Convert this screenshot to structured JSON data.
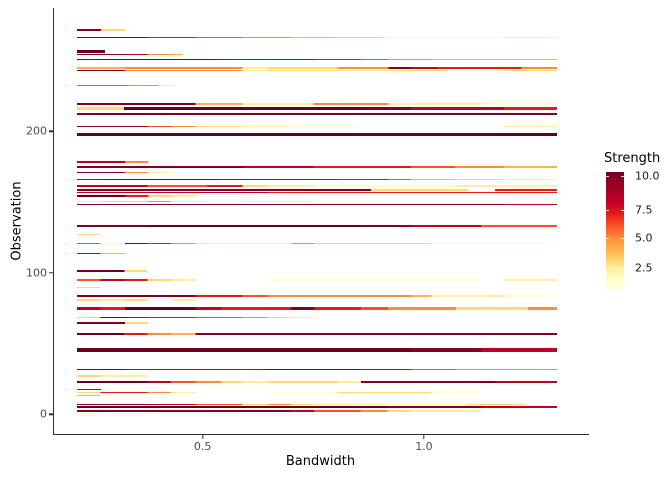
{
  "chart_data": {
    "type": "heatmap",
    "subtype": "horizontal-colored-line-segments",
    "title": "",
    "xlabel": "Bandwidth",
    "ylabel": "Observation",
    "xlim": [
      0.164,
      1.373
    ],
    "ylim": [
      -13.9,
      287.1
    ],
    "grid": false,
    "x_ticks": [
      {
        "v": 0.5,
        "label": "0.5"
      },
      {
        "v": 1.0,
        "label": "1.0"
      }
    ],
    "y_ticks": [
      {
        "v": 0,
        "label": "0"
      },
      {
        "v": 100,
        "label": "100"
      },
      {
        "v": 200,
        "label": "200"
      }
    ],
    "legend": {
      "title": "Strength",
      "position": "right",
      "ticks": [
        {
          "value": 10.0,
          "label": "10.0",
          "pos_pct": 3.4
        },
        {
          "value": 7.5,
          "label": "7.5",
          "pos_pct": 31.8
        },
        {
          "value": 5.0,
          "label": "5.0",
          "pos_pct": 55.9
        },
        {
          "value": 2.5,
          "label": "2.5",
          "pos_pct": 81.5
        }
      ],
      "gradient_stops": [
        [
          0,
          "#73001f"
        ],
        [
          3.4,
          "#800026"
        ],
        [
          14,
          "#a30026"
        ],
        [
          24.5,
          "#bd0026"
        ],
        [
          35,
          "#e31a1c"
        ],
        [
          45,
          "#fc4e2a"
        ],
        [
          55.9,
          "#fd8d3c"
        ],
        [
          66,
          "#feb24c"
        ],
        [
          76,
          "#fed976"
        ],
        [
          81.5,
          "#ffeda0"
        ],
        [
          92,
          "#ffffcc"
        ],
        [
          100,
          "#fffdeb"
        ]
      ]
    },
    "row_start": 0.216,
    "rows": [
      {
        "obs": 271.6,
        "seg": [
          [
            0.27,
            "#800026"
          ],
          [
            0.325,
            "#fed976"
          ]
        ]
      },
      {
        "obs": 266.4,
        "seg": [
          [
            0.375,
            "#800026"
          ],
          [
            0.486,
            "#e31a1c"
          ],
          [
            0.59,
            "#fc4e2a"
          ],
          [
            0.7,
            "#fd8d3c"
          ],
          [
            0.8,
            "#feb24c"
          ],
          [
            0.91,
            "#fed976"
          ],
          [
            1.18,
            "#ffffcc"
          ],
          [
            1.3,
            "#ffeda0"
          ]
        ]
      },
      {
        "obs": 256.5,
        "h": 2.5,
        "seg": [
          [
            0.28,
            "#67001f"
          ]
        ]
      },
      {
        "obs": 254.1,
        "seg": [
          [
            0.325,
            "#800026"
          ],
          [
            0.376,
            "#bd0026"
          ],
          [
            0.43,
            "#fd8d3c"
          ],
          [
            0.456,
            "#feb24c"
          ]
        ]
      },
      {
        "obs": 250.6,
        "seg": [
          [
            0.54,
            "#800026"
          ],
          [
            0.752,
            "#bd0026"
          ],
          [
            0.857,
            "#e31a1c"
          ],
          [
            0.918,
            "#fc4e2a"
          ],
          [
            1.017,
            "#fd8d3c"
          ],
          [
            1.3,
            "#feb24c"
          ]
        ]
      },
      {
        "obs": 244.7,
        "seg": [
          [
            0.324,
            "#feb24c"
          ],
          [
            0.59,
            "#fd8d3c"
          ],
          [
            0.646,
            "#ffeda0"
          ],
          [
            0.805,
            "#fed976"
          ],
          [
            0.92,
            "#fd8d3c"
          ],
          [
            0.97,
            "#800026"
          ],
          [
            1.03,
            "#bd0026"
          ],
          [
            1.22,
            "#e31a1c"
          ],
          [
            1.3,
            "#fd8d3c"
          ]
        ]
      },
      {
        "obs": 243.0,
        "seg": [
          [
            0.324,
            "#800026"
          ],
          [
            0.59,
            "#fd8d3c"
          ],
          [
            0.646,
            "#ffeda0"
          ],
          [
            0.805,
            "#fed976"
          ],
          [
            0.92,
            "#ffeda0"
          ],
          [
            1.05,
            "#fed976"
          ],
          [
            1.18,
            "#ffffcc"
          ],
          [
            1.3,
            "#fed976"
          ]
        ]
      },
      {
        "obs": 232.2,
        "seg": [
          [
            0.33,
            "#fc4e2a"
          ],
          [
            0.4,
            "#fd8d3c"
          ],
          [
            0.435,
            "#ffeda0"
          ]
        ]
      },
      {
        "obs": 219.3,
        "seg": [
          [
            0.484,
            "#800026"
          ],
          [
            0.59,
            "#feb24c"
          ],
          [
            0.75,
            "#ffeda0"
          ],
          [
            0.92,
            "#fd8d3c"
          ],
          [
            1.13,
            "#ffeda0"
          ],
          [
            1.3,
            "#ffffcc"
          ]
        ]
      },
      {
        "obs": 216.0,
        "h": 3,
        "seg": [
          [
            0.322,
            "#fed976"
          ],
          [
            0.857,
            "#67001f"
          ],
          [
            0.97,
            "#800026"
          ],
          [
            1.18,
            "#bd0026"
          ],
          [
            1.3,
            "#e31a1c"
          ]
        ]
      },
      {
        "obs": 212.2,
        "seg": [
          [
            1.3,
            "#800026"
          ]
        ]
      },
      {
        "obs": 203.2,
        "seg": [
          [
            0.375,
            "#800026"
          ],
          [
            0.43,
            "#fc4e2a"
          ],
          [
            0.484,
            "#fd8d3c"
          ],
          [
            0.59,
            "#fed976"
          ],
          [
            0.7,
            "#ffeda0"
          ],
          [
            0.857,
            "#ffffcc"
          ],
          [
            1.18,
            "none"
          ],
          [
            1.3,
            "#ffeda0"
          ]
        ]
      },
      {
        "obs": 197.6,
        "h": 3,
        "seg": [
          [
            1.3,
            "#67001f"
          ]
        ]
      },
      {
        "obs": 178.3,
        "seg": [
          [
            0.324,
            "#bd0026"
          ],
          [
            0.376,
            "#fd8d3c"
          ]
        ]
      },
      {
        "obs": 174.6,
        "seg": [
          [
            0.59,
            "#800026"
          ],
          [
            0.75,
            "#bd0026"
          ],
          [
            0.97,
            "#e31a1c"
          ],
          [
            1.07,
            "#fc4e2a"
          ],
          [
            1.18,
            "#fd8d3c"
          ],
          [
            1.3,
            "#feb24c"
          ]
        ]
      },
      {
        "obs": 170.8,
        "seg": [
          [
            0.324,
            "#800026"
          ],
          [
            0.376,
            "#fd8d3c"
          ],
          [
            0.428,
            "#ffeda0"
          ]
        ]
      },
      {
        "obs": 165.8,
        "seg": [
          [
            0.27,
            "#bd0026"
          ],
          [
            0.54,
            "#800026"
          ],
          [
            0.805,
            "#bd0026"
          ],
          [
            0.92,
            "#e31a1c"
          ],
          [
            0.97,
            "#fc4e2a"
          ],
          [
            1.07,
            "#feb24c"
          ],
          [
            1.18,
            "#fed976"
          ],
          [
            1.3,
            "#ffeda0"
          ]
        ]
      },
      {
        "obs": 161.4,
        "h": 2.5,
        "seg": [
          [
            0.375,
            "#bd0026"
          ],
          [
            0.51,
            "#fc4e2a"
          ],
          [
            0.59,
            "#e31a1c"
          ],
          [
            0.646,
            "#fed976"
          ],
          [
            0.752,
            "#ffeda0"
          ],
          [
            1.07,
            "#ffffcc"
          ],
          [
            1.3,
            "#ffeda0"
          ]
        ]
      },
      {
        "obs": 158.5,
        "seg": [
          [
            0.88,
            "#800026"
          ],
          [
            1.1,
            "#fed976"
          ],
          [
            1.16,
            "none"
          ],
          [
            1.3,
            "#e31a1c"
          ]
        ]
      },
      {
        "obs": 156.6,
        "seg": [
          [
            0.646,
            "#bd0026"
          ],
          [
            1.3,
            "#e31a1c"
          ]
        ]
      },
      {
        "obs": 154.3,
        "h": 2.5,
        "seg": [
          [
            0.325,
            "#67001f"
          ],
          [
            0.377,
            "#e31a1c"
          ],
          [
            0.428,
            "#fed976"
          ],
          [
            0.487,
            "#ffeda0"
          ]
        ]
      },
      {
        "obs": 150.5,
        "seg": [
          [
            0.269,
            "#ffeda0"
          ],
          [
            0.375,
            "#fed976"
          ],
          [
            0.428,
            "#fd8d3c"
          ],
          [
            0.51,
            "#ffeda0"
          ],
          [
            0.59,
            "#ffffcc"
          ],
          [
            0.752,
            "#ffeda0"
          ]
        ]
      },
      {
        "obs": 148.1,
        "seg": [
          [
            1.18,
            "#800026"
          ],
          [
            1.3,
            "#bd0026"
          ]
        ]
      },
      {
        "obs": 133.1,
        "seg": [
          [
            0.375,
            "#800026"
          ],
          [
            0.857,
            "#67001f"
          ],
          [
            0.97,
            "#800026"
          ],
          [
            1.13,
            "#bd0026"
          ],
          [
            1.3,
            "#fc4e2a"
          ]
        ]
      },
      {
        "obs": 126.9,
        "seg": [
          [
            0.269,
            "#fed976"
          ]
        ]
      },
      {
        "obs": 120.6,
        "seg": [
          [
            0.269,
            "#fc4e2a"
          ],
          [
            0.324,
            "#ffffcc"
          ],
          [
            0.375,
            "#800026"
          ],
          [
            0.428,
            "#e31a1c"
          ],
          [
            0.484,
            "#fd8d3c"
          ],
          [
            0.7,
            "#ffeda0"
          ],
          [
            0.752,
            "#fd8d3c"
          ],
          [
            1.016,
            "#fed976"
          ],
          [
            1.3,
            "#ffffcc"
          ]
        ]
      },
      {
        "obs": 113.5,
        "seg": [
          [
            0.269,
            "#bd0026"
          ],
          [
            0.324,
            "#feb24c"
          ]
        ]
      },
      {
        "obs": 101.1,
        "seg": [
          [
            0.324,
            "#67001f"
          ],
          [
            0.375,
            "#fed976"
          ]
        ]
      },
      {
        "obs": 94.9,
        "seg": [
          [
            0.269,
            "#fc4e2a"
          ],
          [
            0.324,
            "#bd0026"
          ],
          [
            0.375,
            "#e31a1c"
          ],
          [
            0.428,
            "#fed976"
          ],
          [
            0.484,
            "#ffeda0"
          ],
          [
            0.646,
            "none"
          ],
          [
            1.129,
            "#ffffcc"
          ],
          [
            1.182,
            "none"
          ],
          [
            1.3,
            "#ffeda0"
          ]
        ]
      },
      {
        "obs": 89.5,
        "seg": [
          [
            0.269,
            "#fed976"
          ]
        ]
      },
      {
        "obs": 83.6,
        "seg": [
          [
            0.484,
            "#800026"
          ],
          [
            0.59,
            "#e31a1c"
          ],
          [
            0.646,
            "#fc4e2a"
          ],
          [
            0.97,
            "#fd8d3c"
          ],
          [
            1.016,
            "#feb24c"
          ],
          [
            1.182,
            "#ffeda0"
          ],
          [
            1.3,
            "#ffffcc"
          ]
        ]
      },
      {
        "obs": 80.8,
        "seg": [
          [
            0.269,
            "#fed976"
          ],
          [
            0.324,
            "#ffeda0"
          ],
          [
            0.375,
            "#fed976"
          ],
          [
            0.428,
            "none"
          ],
          [
            0.484,
            "#ffeda0"
          ]
        ]
      },
      {
        "obs": 74.9,
        "h": 3,
        "seg": [
          [
            0.269,
            "#bd0026"
          ],
          [
            0.324,
            "#e31a1c"
          ],
          [
            0.484,
            "#67001f"
          ],
          [
            0.541,
            "#bd0026"
          ],
          [
            0.699,
            "#e31a1c"
          ],
          [
            0.752,
            "#800026"
          ],
          [
            0.857,
            "#e31a1c"
          ],
          [
            0.918,
            "#fc4e2a"
          ],
          [
            1.072,
            "#fd8d3c"
          ],
          [
            1.234,
            "#fed976"
          ],
          [
            1.3,
            "#fd8d3c"
          ]
        ]
      },
      {
        "obs": 68.5,
        "seg": [
          [
            0.269,
            "#fed976"
          ],
          [
            0.324,
            "#800026"
          ],
          [
            0.375,
            "#bd0026"
          ],
          [
            0.484,
            "#e31a1c"
          ],
          [
            0.59,
            "#fc4e2a"
          ],
          [
            0.646,
            "#fd8d3c"
          ],
          [
            0.699,
            "#fed976"
          ],
          [
            0.752,
            "#ffeda0"
          ]
        ]
      },
      {
        "obs": 64.7,
        "seg": [
          [
            0.324,
            "#800026"
          ],
          [
            0.376,
            "#fed976"
          ]
        ]
      },
      {
        "obs": 56.8,
        "h": 2.5,
        "seg": [
          [
            0.322,
            "#67001f"
          ],
          [
            0.375,
            "#e31a1c"
          ],
          [
            0.428,
            "#fd8d3c"
          ],
          [
            0.484,
            "#feb24c"
          ],
          [
            1.3,
            "#800026"
          ]
        ]
      },
      {
        "obs": 45.2,
        "h": 4,
        "seg": [
          [
            0.971,
            "#67001f"
          ],
          [
            1.129,
            "#800026"
          ],
          [
            1.3,
            "#bd0026"
          ]
        ]
      },
      {
        "obs": 31.8,
        "seg": [
          [
            0.324,
            "#800026"
          ],
          [
            0.646,
            "#bd0026"
          ],
          [
            0.857,
            "#800026"
          ],
          [
            0.971,
            "#bd0026"
          ],
          [
            1.072,
            "#fc4e2a"
          ],
          [
            1.3,
            "#fd8d3c"
          ]
        ]
      },
      {
        "obs": 27.1,
        "seg": [
          [
            0.269,
            "#fed976"
          ],
          [
            0.375,
            "#ffeda0"
          ]
        ]
      },
      {
        "obs": 22.8,
        "h": 2.5,
        "seg": [
          [
            0.375,
            "#67001f"
          ],
          [
            0.428,
            "#bd0026"
          ],
          [
            0.484,
            "#fc4e2a"
          ],
          [
            0.541,
            "#fd8d3c"
          ],
          [
            0.59,
            "#fed976"
          ],
          [
            0.646,
            "#ffeda0"
          ],
          [
            0.805,
            "#fed976"
          ],
          [
            0.857,
            "#ffeda0"
          ],
          [
            1.16,
            "#800026"
          ],
          [
            1.3,
            "#bd0026"
          ]
        ]
      },
      {
        "obs": 17.7,
        "seg": [
          [
            0.271,
            "#bd0026"
          ]
        ]
      },
      {
        "obs": 15.3,
        "seg": [
          [
            0.269,
            "#fed976"
          ],
          [
            0.375,
            "#e31a1c"
          ],
          [
            0.428,
            "#fd8d3c"
          ],
          [
            0.484,
            "#ffeda0"
          ],
          [
            0.646,
            "none"
          ],
          [
            0.805,
            "#ffffcc"
          ],
          [
            1.016,
            "#fed976"
          ],
          [
            1.129,
            "#ffffcc"
          ]
        ]
      },
      {
        "obs": 13.4,
        "seg": [
          [
            0.269,
            "#feb24c"
          ]
        ]
      },
      {
        "obs": 6.8,
        "seg": [
          [
            0.375,
            "#800026"
          ],
          [
            0.484,
            "#bd0026"
          ],
          [
            0.59,
            "#fc4e2a"
          ],
          [
            0.646,
            "#fed976"
          ],
          [
            0.699,
            "#fd8d3c"
          ],
          [
            0.752,
            "#fed976"
          ],
          [
            0.9,
            "#ffeda0"
          ],
          [
            1.1,
            "#ffffcc"
          ],
          [
            1.23,
            "#fed976"
          ]
        ]
      },
      {
        "obs": 5.4,
        "h": 2,
        "seg": [
          [
            0.918,
            "#67001f"
          ],
          [
            1.129,
            "#800026"
          ],
          [
            1.3,
            "#bd0026"
          ]
        ]
      },
      {
        "obs": 2.5,
        "seg": [
          [
            0.699,
            "#800026"
          ],
          [
            0.752,
            "#bd0026"
          ],
          [
            0.857,
            "#fc4e2a"
          ],
          [
            0.918,
            "#fd8d3c"
          ],
          [
            0.971,
            "#fed976"
          ],
          [
            1.129,
            "#ffeda0"
          ]
        ]
      },
      {
        "obs": 0.2,
        "seg": [
          [
            0.269,
            "#ffffcc"
          ]
        ]
      }
    ]
  }
}
